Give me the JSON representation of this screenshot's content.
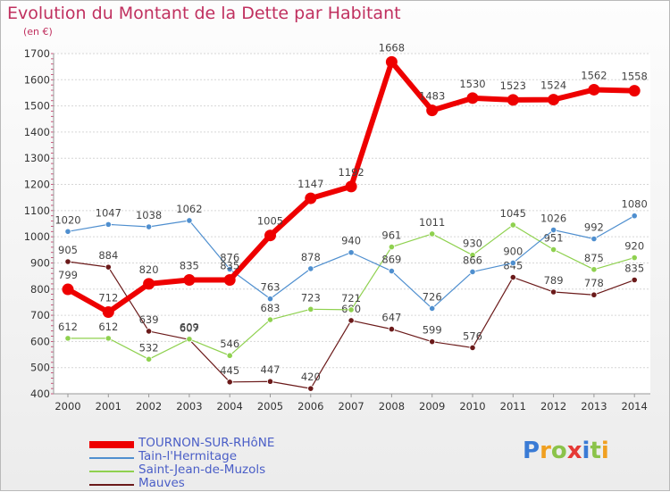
{
  "title": "Evolution du Montant de la Dette par Habitant",
  "unit_label": "(en €)",
  "logo_text": "Proxiti",
  "logo_colors": [
    "#3a7bd5",
    "#f0a020",
    "#8bc34a",
    "#e53935",
    "#3a7bd5",
    "#8bc34a",
    "#f0a020"
  ],
  "chart_data": {
    "type": "line",
    "x": [
      2000,
      2001,
      2002,
      2003,
      2004,
      2005,
      2006,
      2007,
      2008,
      2009,
      2010,
      2011,
      2012,
      2013,
      2014
    ],
    "ylim": [
      400,
      1700
    ],
    "yticks": [
      400,
      500,
      600,
      700,
      800,
      900,
      1000,
      1100,
      1200,
      1300,
      1400,
      1500,
      1600,
      1700
    ],
    "grid": "horizontal dashed",
    "legend_position": "bottom-left",
    "series": [
      {
        "name": "Mauves",
        "color": "#6b1a1a",
        "width": 1.2,
        "values": [
          905,
          884,
          639,
          607,
          445,
          447,
          420,
          680,
          647,
          599,
          576,
          845,
          789,
          778,
          835
        ]
      },
      {
        "name": "Saint-Jean-de-Muzols",
        "color": "#8fd14f",
        "width": 1.2,
        "values": [
          612,
          612,
          532,
          609,
          546,
          683,
          723,
          721,
          961,
          1011,
          930,
          1045,
          951,
          875,
          920
        ]
      },
      {
        "name": "Tain-l'Hermitage",
        "color": "#4f8fcf",
        "width": 1.2,
        "values": [
          1020,
          1047,
          1038,
          1062,
          876,
          763,
          878,
          940,
          869,
          726,
          866,
          900,
          1026,
          992,
          1080
        ]
      },
      {
        "name": "TOURNON-SUR-RHôNE",
        "color": "#ee0000",
        "width": 6,
        "values": [
          799,
          712,
          820,
          835,
          835,
          1005,
          1147,
          1192,
          1668,
          1483,
          1530,
          1523,
          1524,
          1562,
          1558
        ]
      }
    ],
    "legend_order": [
      "TOURNON-SUR-RHôNE",
      "Tain-l'Hermitage",
      "Saint-Jean-de-Muzols",
      "Mauves"
    ]
  }
}
